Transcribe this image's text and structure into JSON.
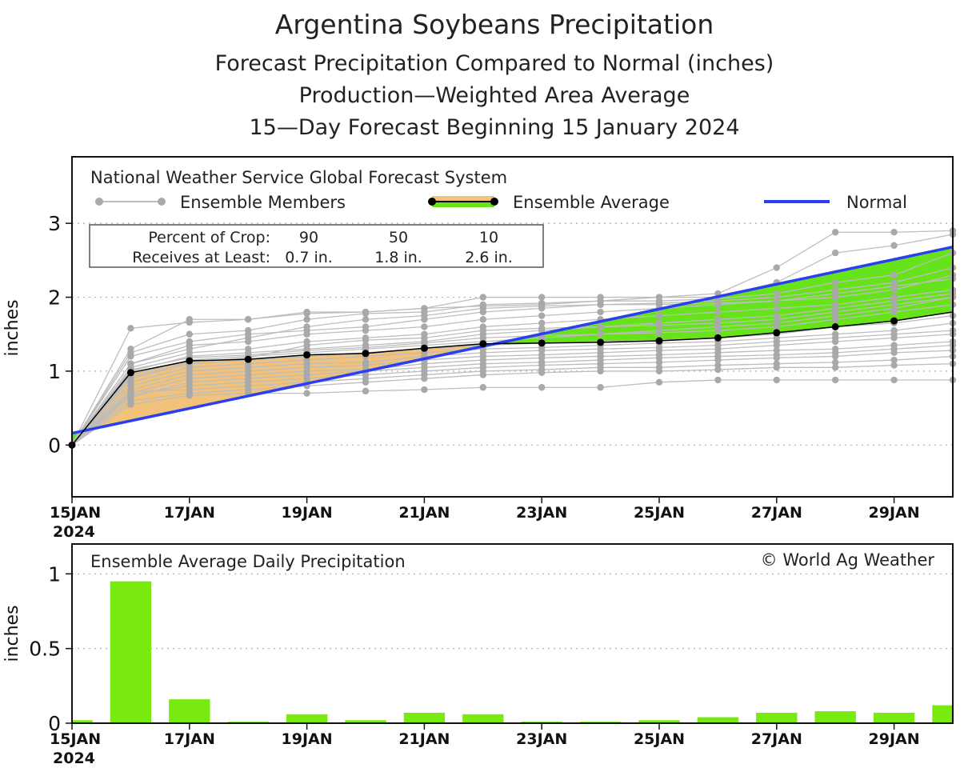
{
  "titles": {
    "line1": "Argentina Soybeans Precipitation",
    "line2": "Forecast Precipitation Compared to Normal (inches)",
    "line3": "Production—Weighted Area Average",
    "line4": "15—Day Forecast Beginning 15 January 2024"
  },
  "legend": {
    "system": "National Weather Service Global Forecast System",
    "members_label": "Ensemble Members",
    "average_label": "Ensemble Average",
    "normal_label": "Normal"
  },
  "crop_table": {
    "row1_label": "Percent of Crop:",
    "row2_label": "Receives at Least:",
    "percents": [
      "90",
      "50",
      "10"
    ],
    "amounts": [
      "0.7 in.",
      "1.8 in.",
      "2.6 in."
    ]
  },
  "colors": {
    "normal": "#2a3ff0",
    "above_normal_fill": "#f2c27a",
    "below_normal_fill": "#66e31a",
    "member": "#bdbdbd",
    "member_dot": "#a9a9a9",
    "bar": "#79ea10"
  },
  "chart_data": [
    {
      "type": "line",
      "title": "Forecast Precipitation Compared to Normal (inches)",
      "ylabel": "inches",
      "ylim": [
        -0.7,
        3.9
      ],
      "yticks": [
        "0",
        "1",
        "2",
        "3"
      ],
      "x_tick_labels": [
        "15JAN",
        "17JAN",
        "19JAN",
        "21JAN",
        "23JAN",
        "25JAN",
        "27JAN",
        "29JAN"
      ],
      "x_first_year": "2024",
      "x_days": [
        15,
        16,
        17,
        18,
        19,
        20,
        21,
        22,
        23,
        24,
        25,
        26,
        27,
        28,
        29,
        30
      ],
      "normal": {
        "start": [
          15,
          0.16
        ],
        "end": [
          30,
          2.68
        ]
      },
      "ensemble_average": [
        0.0,
        0.98,
        1.14,
        1.16,
        1.22,
        1.24,
        1.31,
        1.37,
        1.38,
        1.39,
        1.41,
        1.45,
        1.52,
        1.6,
        1.68,
        1.8
      ],
      "members": [
        [
          0.0,
          1.58,
          1.66,
          1.7,
          1.78,
          1.8,
          1.85,
          1.88,
          1.9,
          1.95,
          2.0,
          2.05,
          2.4,
          2.88,
          2.88,
          2.9
        ],
        [
          0.0,
          1.3,
          1.7,
          1.7,
          1.8,
          1.8,
          1.85,
          2.0,
          2.0,
          2.0,
          2.0,
          2.0,
          2.2,
          2.6,
          2.7,
          2.85
        ],
        [
          0.0,
          1.25,
          1.5,
          1.55,
          1.7,
          1.78,
          1.8,
          1.9,
          1.92,
          1.95,
          1.95,
          1.98,
          2.05,
          2.2,
          2.3,
          2.6
        ],
        [
          0.0,
          1.2,
          1.4,
          1.5,
          1.55,
          1.6,
          1.7,
          1.8,
          1.85,
          1.9,
          1.92,
          1.95,
          2.0,
          2.1,
          2.2,
          2.4
        ],
        [
          0.0,
          1.1,
          1.35,
          1.4,
          1.5,
          1.55,
          1.6,
          1.7,
          1.75,
          1.8,
          1.85,
          1.9,
          1.95,
          2.0,
          2.1,
          2.3
        ],
        [
          0.0,
          1.05,
          1.25,
          1.3,
          1.4,
          1.45,
          1.5,
          1.6,
          1.65,
          1.7,
          1.75,
          1.8,
          1.85,
          1.9,
          2.0,
          2.1
        ],
        [
          0.0,
          1.0,
          1.2,
          1.25,
          1.3,
          1.35,
          1.4,
          1.5,
          1.55,
          1.6,
          1.62,
          1.65,
          1.7,
          1.8,
          1.9,
          2.0
        ],
        [
          0.0,
          0.95,
          1.15,
          1.2,
          1.25,
          1.3,
          1.35,
          1.4,
          1.45,
          1.5,
          1.52,
          1.55,
          1.6,
          1.7,
          1.8,
          1.9
        ],
        [
          0.0,
          0.9,
          1.1,
          1.15,
          1.2,
          1.25,
          1.3,
          1.35,
          1.38,
          1.4,
          1.42,
          1.45,
          1.5,
          1.6,
          1.65,
          1.75
        ],
        [
          0.0,
          0.85,
          1.05,
          1.1,
          1.15,
          1.2,
          1.25,
          1.3,
          1.32,
          1.35,
          1.38,
          1.4,
          1.45,
          1.5,
          1.55,
          1.65
        ],
        [
          0.0,
          0.8,
          1.0,
          1.05,
          1.1,
          1.12,
          1.2,
          1.25,
          1.28,
          1.3,
          1.32,
          1.35,
          1.4,
          1.45,
          1.5,
          1.55
        ],
        [
          0.0,
          0.75,
          0.95,
          1.0,
          1.05,
          1.08,
          1.15,
          1.2,
          1.22,
          1.25,
          1.28,
          1.3,
          1.35,
          1.4,
          1.45,
          1.5
        ],
        [
          0.0,
          0.7,
          0.9,
          0.95,
          1.0,
          1.02,
          1.1,
          1.15,
          1.18,
          1.2,
          1.22,
          1.25,
          1.28,
          1.3,
          1.35,
          1.4
        ],
        [
          0.0,
          0.65,
          0.85,
          0.9,
          0.95,
          1.0,
          1.05,
          1.1,
          1.12,
          1.15,
          1.18,
          1.2,
          1.22,
          1.25,
          1.3,
          1.35
        ],
        [
          0.0,
          0.68,
          0.8,
          0.85,
          0.9,
          0.95,
          1.0,
          1.05,
          1.08,
          1.1,
          1.12,
          1.15,
          1.18,
          1.2,
          1.25,
          1.28
        ],
        [
          0.0,
          0.72,
          0.75,
          0.8,
          0.85,
          0.9,
          0.95,
          1.0,
          1.02,
          1.05,
          1.05,
          1.08,
          1.1,
          1.12,
          1.15,
          1.2
        ],
        [
          0.0,
          0.6,
          0.7,
          0.75,
          0.8,
          0.85,
          0.9,
          0.95,
          0.98,
          1.0,
          1.0,
          1.02,
          1.05,
          1.05,
          1.08,
          1.1
        ],
        [
          0.0,
          0.55,
          0.67,
          0.7,
          0.7,
          0.73,
          0.75,
          0.78,
          0.78,
          0.78,
          0.85,
          0.88,
          0.88,
          0.88,
          0.88,
          0.88
        ],
        [
          0.0,
          1.1,
          1.3,
          1.45,
          1.6,
          1.7,
          1.75,
          1.85,
          1.88,
          1.9,
          1.9,
          1.92,
          1.95,
          2.05,
          2.15,
          2.25
        ],
        [
          0.0,
          0.92,
          1.12,
          1.18,
          1.35,
          1.42,
          1.45,
          1.55,
          1.58,
          1.6,
          1.65,
          1.7,
          1.75,
          1.85,
          1.95,
          2.05
        ],
        [
          0.0,
          1.02,
          1.18,
          1.22,
          1.28,
          1.32,
          1.38,
          1.45,
          1.48,
          1.5,
          1.55,
          1.6,
          1.65,
          1.75,
          1.85,
          2.0
        ]
      ]
    },
    {
      "type": "bar",
      "title": "Ensemble Average Daily Precipitation",
      "ylabel": "inches",
      "ylim": [
        0,
        1.2
      ],
      "yticks": [
        "0",
        "0.5",
        "1"
      ],
      "x_tick_labels": [
        "15JAN",
        "17JAN",
        "19JAN",
        "21JAN",
        "23JAN",
        "25JAN",
        "27JAN",
        "29JAN"
      ],
      "x_first_year": "2024",
      "x_days": [
        15,
        16,
        17,
        18,
        19,
        20,
        21,
        22,
        23,
        24,
        25,
        26,
        27,
        28,
        29,
        30
      ],
      "values": [
        0.02,
        0.95,
        0.16,
        0.01,
        0.06,
        0.02,
        0.07,
        0.06,
        0.01,
        0.01,
        0.02,
        0.04,
        0.07,
        0.08,
        0.07,
        0.12
      ],
      "credit": "© World Ag Weather"
    }
  ]
}
